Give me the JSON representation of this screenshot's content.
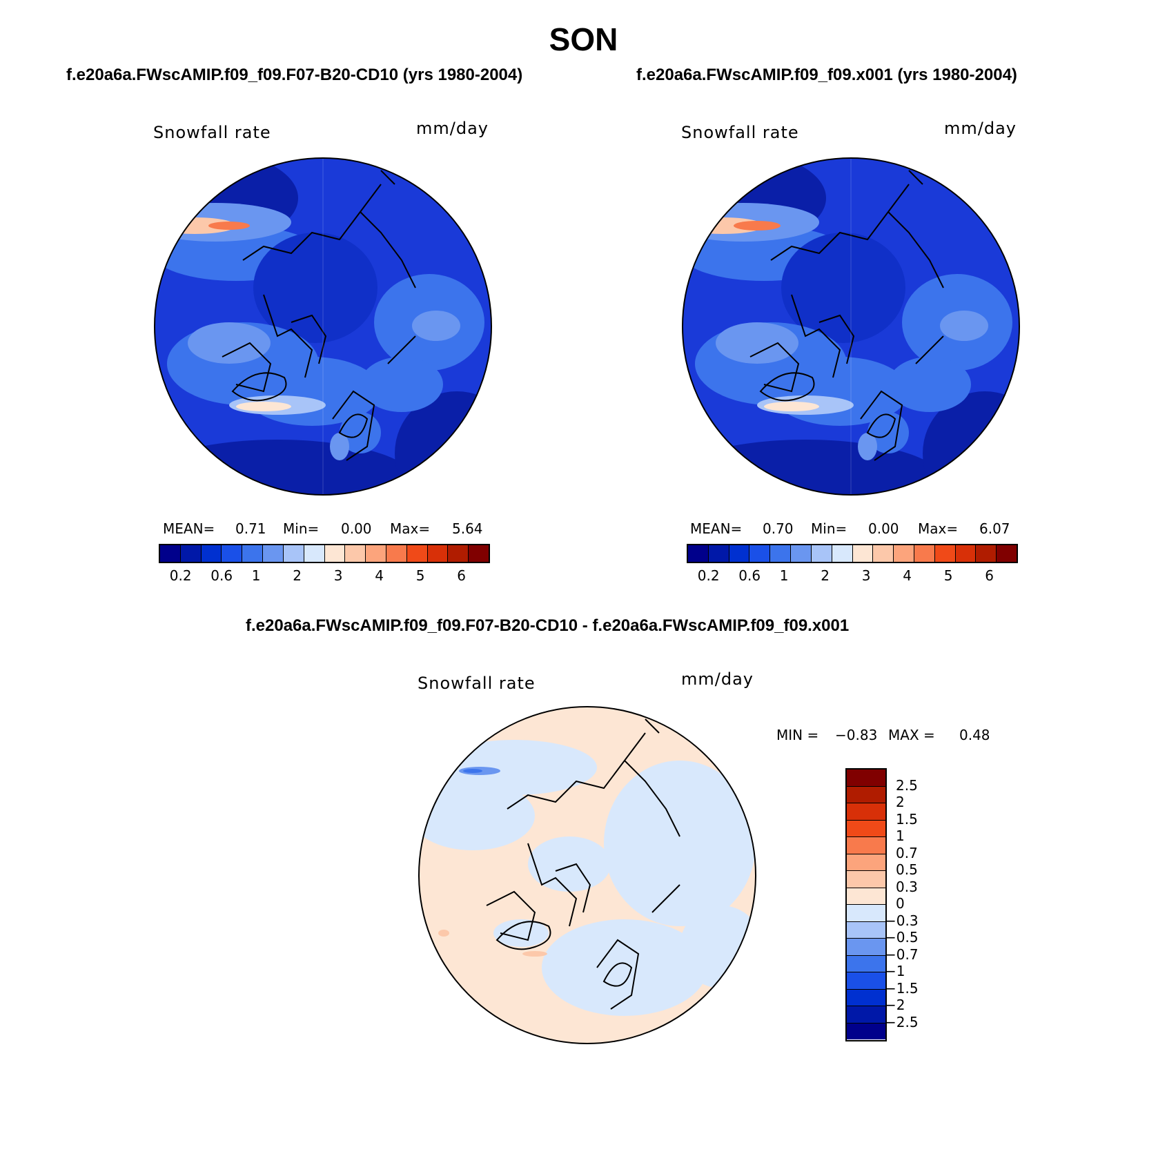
{
  "title": "SON",
  "panels": [
    {
      "title": "f.e20a6a.FWscAMIP.f09_f09.F07-B20-CD10 (yrs 1980-2004)",
      "variable": "Snowfall rate",
      "units": "mm/day",
      "mean_label": "MEAN=",
      "mean": "0.71",
      "min_label": "Min=",
      "min": "0.00",
      "max_label": "Max=",
      "max": "5.64"
    },
    {
      "title": "f.e20a6a.FWscAMIP.f09_f09.x001 (yrs 1980-2004)",
      "variable": "Snowfall rate",
      "units": "mm/day",
      "mean_label": "MEAN=",
      "mean": "0.70",
      "min_label": "Min=",
      "min": "0.00",
      "max_label": "Max=",
      "max": "6.07"
    }
  ],
  "diff_panel": {
    "title": "f.e20a6a.FWscAMIP.f09_f09.F07-B20-CD10 - f.e20a6a.FWscAMIP.f09_f09.x001",
    "variable": "Snowfall rate",
    "units": "mm/day",
    "min_label": "MIN =",
    "min": "−0.83",
    "max_label": "MAX =",
    "max": "0.48"
  },
  "colorbar_abs": {
    "ticks": [
      "0.2",
      "0.6",
      "1",
      "2",
      "3",
      "4",
      "5",
      "6"
    ],
    "colors": [
      "#00008b",
      "#0018a8",
      "#0030d0",
      "#1a50e8",
      "#3c74ec",
      "#6a96f0",
      "#a8c4f8",
      "#d8e8fc",
      "#fde6d4",
      "#fcc8aa",
      "#fca47c",
      "#f87a4c",
      "#f04a18",
      "#d83008",
      "#b01c00",
      "#800000"
    ]
  },
  "colorbar_diff": {
    "ticks": [
      "2.5",
      "2",
      "1.5",
      "1",
      "0.7",
      "0.5",
      "0.3",
      "0",
      "−0.3",
      "−0.5",
      "−0.7",
      "−1",
      "−1.5",
      "−2",
      "−2.5"
    ],
    "colors": [
      "#800000",
      "#b01c00",
      "#d83008",
      "#f04a18",
      "#f87a4c",
      "#fca47c",
      "#fcc8aa",
      "#fde6d4",
      "#d8e8fc",
      "#a8c4f8",
      "#6a96f0",
      "#3c74ec",
      "#1a50e8",
      "#0030d0",
      "#0018a8",
      "#00008b"
    ]
  }
}
